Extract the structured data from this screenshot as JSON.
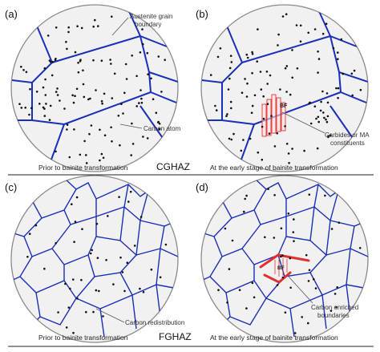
{
  "panels": {
    "a": {
      "label": "(a)",
      "caption": "Prior to bainite transformation",
      "callouts": {
        "grain": "Austenite grain\nboundary",
        "carbon": "Carbon atom"
      }
    },
    "b": {
      "label": "(b)",
      "caption": "At the early stage of bainite transformation",
      "callouts": {
        "bf": "BF",
        "carbides": "Carbides or MA\nconstituents"
      }
    },
    "c": {
      "label": "(c)",
      "caption": "Prior to bainite transformation",
      "callouts": {
        "redistribution": "Carbon redistribution"
      }
    },
    "d": {
      "label": "(d)",
      "caption": "At the early stage of bainite transformation",
      "callouts": {
        "bf": "BF",
        "enriched": "Carbon enriched\nboundaries"
      }
    }
  },
  "section_labels": {
    "top": "CGHAZ",
    "bottom": "FGHAZ"
  },
  "colors": {
    "boundary": "#1a2fb8",
    "carbon": "#111111",
    "bf": "#e03030",
    "circle_fill": "#f1f1f1",
    "circle_stroke": "#8a8a8a"
  }
}
